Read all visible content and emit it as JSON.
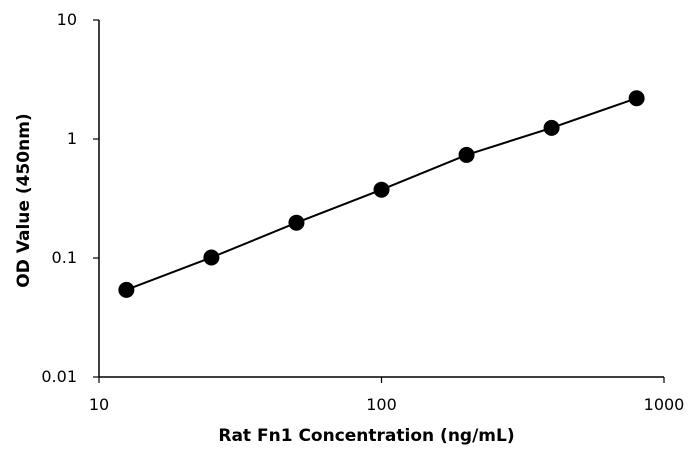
{
  "chart_data": {
    "type": "scatter",
    "title": "",
    "xlabel": "Rat Fn1 Concentration  (ng/mL)",
    "ylabel": "OD Value (450nm)",
    "xscale": "log",
    "yscale": "log",
    "xlim": [
      10,
      1000
    ],
    "ylim": [
      0.01,
      10
    ],
    "x_ticks": [
      10,
      100,
      1000
    ],
    "x_tick_labels": [
      "10",
      "100",
      "1000"
    ],
    "y_ticks": [
      0.01,
      0.1,
      1,
      10
    ],
    "y_tick_labels": [
      "0.01",
      "0.1",
      "1",
      "10"
    ],
    "grid": false,
    "legend": "none",
    "marker_color": "#000000",
    "line_color": "#000000",
    "series": [
      {
        "x": [
          12.5,
          25,
          50,
          100,
          200,
          400,
          800
        ],
        "y": [
          0.054,
          0.101,
          0.198,
          0.375,
          0.735,
          1.24,
          2.2
        ]
      }
    ]
  }
}
